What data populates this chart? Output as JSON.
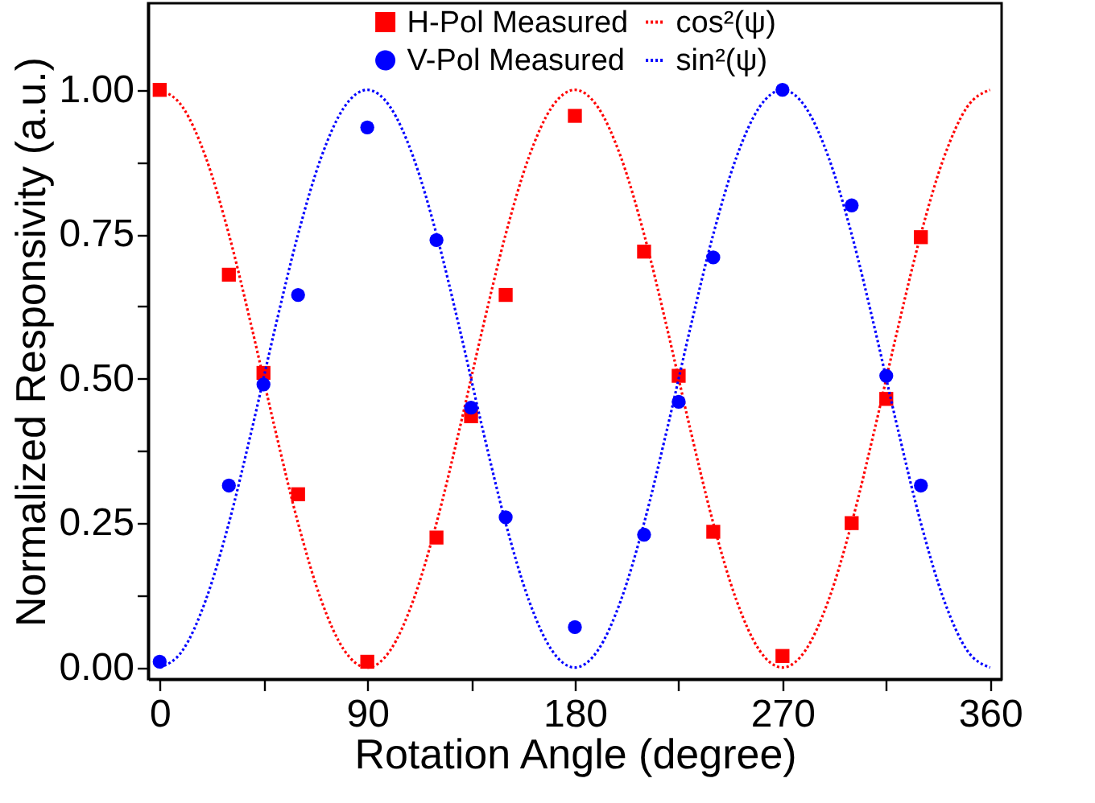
{
  "chart_data": {
    "type": "scatter",
    "xlabel": "Rotation Angle (degree)",
    "ylabel": "Normalized Responsivity (a.u.)",
    "xlim": [
      -5,
      365
    ],
    "ylim": [
      -0.02,
      1.15
    ],
    "xticks": [
      0,
      {
        "value": 45,
        "label": null
      },
      90,
      {
        "value": 135,
        "label": null
      },
      180,
      {
        "value": 225,
        "label": null
      },
      270,
      {
        "value": 315,
        "label": null
      },
      360
    ],
    "yticks": [
      "0.00",
      {
        "value": 0.125,
        "label": null
      },
      {
        "value": 0.25,
        "label": "0.25"
      },
      {
        "value": 0.375,
        "label": null
      },
      {
        "value": 0.5,
        "label": "0.50"
      },
      {
        "value": 0.625,
        "label": null
      },
      {
        "value": 0.75,
        "label": "0.75"
      },
      {
        "value": 0.875,
        "label": null
      },
      {
        "value": 1,
        "label": "1.00"
      }
    ],
    "legend": "top",
    "grid": false,
    "x": [
      0,
      30,
      45,
      60,
      90,
      120,
      135,
      150,
      180,
      210,
      225,
      240,
      270,
      300,
      315,
      330
    ],
    "series": [
      {
        "name": "H-Pol Measured",
        "marker": "square",
        "color": "#ff0000",
        "values": [
          1.0,
          0.68,
          0.51,
          0.3,
          0.01,
          0.225,
          0.435,
          0.645,
          0.955,
          0.72,
          0.505,
          0.235,
          0.02,
          0.25,
          0.465,
          0.745
        ]
      },
      {
        "name": "cos²(ψ)",
        "type": "line",
        "line_style": "dotted",
        "color": "#ff0000",
        "x": [
          0,
          10,
          20,
          30,
          40,
          50,
          60,
          70,
          80,
          90,
          100,
          110,
          120,
          130,
          140,
          150,
          160,
          170,
          180,
          190,
          200,
          210,
          220,
          230,
          240,
          250,
          260,
          270,
          280,
          290,
          300,
          310,
          320,
          330,
          340,
          350,
          360
        ],
        "values": [
          1,
          0.97,
          0.883,
          0.75,
          0.587,
          0.413,
          0.25,
          0.117,
          0.03,
          0,
          0.03,
          0.117,
          0.25,
          0.413,
          0.587,
          0.75,
          0.883,
          0.97,
          1,
          0.97,
          0.883,
          0.75,
          0.587,
          0.413,
          0.25,
          0.117,
          0.03,
          0,
          0.03,
          0.117,
          0.25,
          0.413,
          0.587,
          0.75,
          0.883,
          0.97,
          1
        ]
      },
      {
        "name": "V-Pol Measured",
        "marker": "circle",
        "color": "#0000ff",
        "values": [
          0.01,
          0.315,
          0.49,
          0.645,
          0.935,
          0.74,
          0.45,
          0.26,
          0.07,
          0.23,
          0.46,
          0.71,
          1.0,
          0.8,
          0.505,
          0.315
        ]
      },
      {
        "name": "sin²(ψ)",
        "type": "line",
        "line_style": "dotted",
        "color": "#0000ff",
        "x": [
          0,
          10,
          20,
          30,
          40,
          50,
          60,
          70,
          80,
          90,
          100,
          110,
          120,
          130,
          140,
          150,
          160,
          170,
          180,
          190,
          200,
          210,
          220,
          230,
          240,
          250,
          260,
          270,
          280,
          290,
          300,
          310,
          320,
          330,
          340,
          350,
          360
        ],
        "values": [
          0,
          0.03,
          0.117,
          0.25,
          0.413,
          0.587,
          0.75,
          0.883,
          0.97,
          1,
          0.97,
          0.883,
          0.75,
          0.587,
          0.413,
          0.25,
          0.117,
          0.03,
          0,
          0.03,
          0.117,
          0.25,
          0.413,
          0.587,
          0.75,
          0.883,
          0.97,
          1,
          0.97,
          0.883,
          0.75,
          0.587,
          0.413,
          0.25,
          0.117,
          0.03,
          0
        ]
      }
    ]
  }
}
